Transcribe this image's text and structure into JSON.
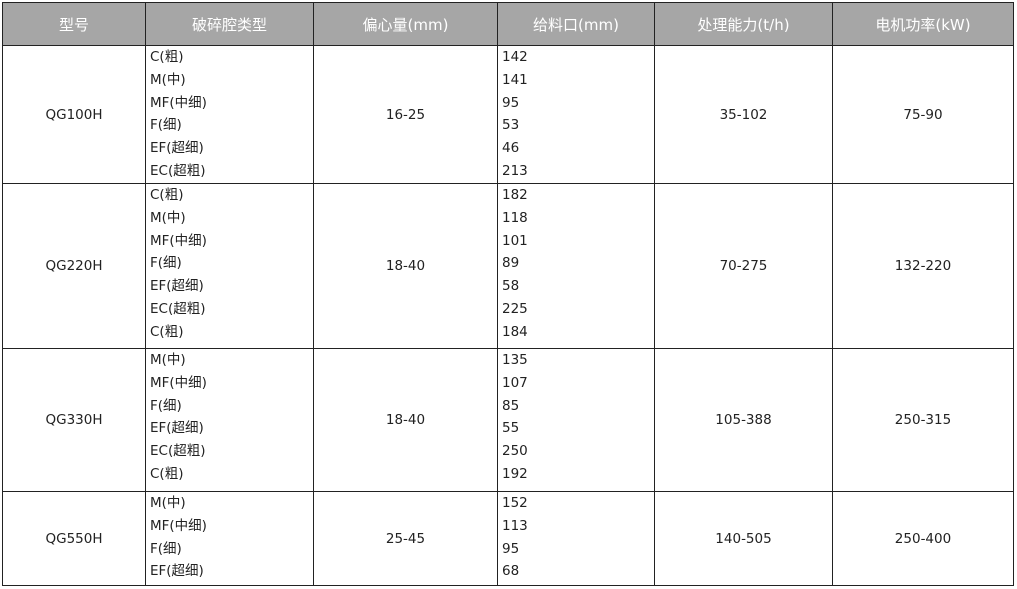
{
  "headers": [
    "型号",
    "破碎腔类型",
    "偏心量(mm)",
    "给料口(mm)",
    "处理能力(t/h)",
    "电机功率(kW)"
  ],
  "colors": {
    "header_bg": "#a6a6a6",
    "header_text": "#ffffff",
    "border": "#222222"
  },
  "rows": [
    {
      "model": "QG100H",
      "cavities": [
        "C(粗)",
        "M(中)",
        "MF(中细)",
        "F(细)",
        "EF(超细)",
        "EC(超粗)"
      ],
      "eccentric": "16-25",
      "feed": [
        "142",
        "141",
        "95",
        "53",
        "46",
        "213"
      ],
      "capacity": "35-102",
      "power": "75-90"
    },
    {
      "model": "QG220H",
      "cavities": [
        "C(粗)",
        "M(中)",
        "MF(中细)",
        "F(细)",
        "EF(超细)",
        "EC(超粗)",
        "C(粗)"
      ],
      "eccentric": "18-40",
      "feed": [
        "182",
        "118",
        "101",
        "89",
        "58",
        "225",
        "184"
      ],
      "capacity": "70-275",
      "power": "132-220"
    },
    {
      "model": "QG330H",
      "cavities": [
        "M(中)",
        "MF(中细)",
        "F(细)",
        "EF(超细)",
        "EC(超粗)",
        "C(粗)"
      ],
      "eccentric": "18-40",
      "feed": [
        "135",
        "107",
        "85",
        "55",
        "250",
        "192"
      ],
      "capacity": "105-388",
      "power": "250-315"
    },
    {
      "model": "QG550H",
      "cavities": [
        "M(中)",
        "MF(中细)",
        "F(细)",
        "EF(超细)"
      ],
      "eccentric": "25-45",
      "feed": [
        "152",
        "113",
        "95",
        "68"
      ],
      "capacity": "140-505",
      "power": "250-400"
    }
  ]
}
